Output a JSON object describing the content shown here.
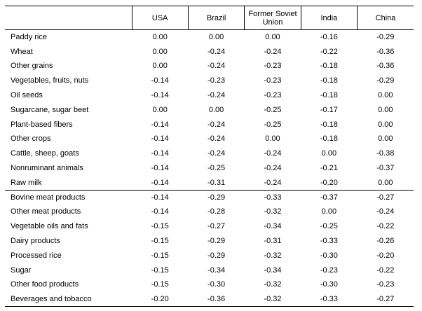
{
  "columns": [
    "USA",
    "Brazil",
    "Former Soviet Union",
    "India",
    "China"
  ],
  "rows": [
    {
      "label": "Paddy rice",
      "values": [
        "0.00",
        "0.00",
        "0.00",
        "-0.16",
        "-0.29"
      ]
    },
    {
      "label": "Wheat",
      "values": [
        "0.00",
        "-0.24",
        "-0.24",
        "-0.22",
        "-0.36"
      ]
    },
    {
      "label": "Other grains",
      "values": [
        "0.00",
        "-0.24",
        "-0.23",
        "-0.18",
        "-0.36"
      ]
    },
    {
      "label": "Vegetables, fruits, nuts",
      "values": [
        "-0.14",
        "-0.23",
        "-0.23",
        "-0.18",
        "-0.29"
      ]
    },
    {
      "label": "Oil seeds",
      "values": [
        "-0.14",
        "-0.24",
        "-0.23",
        "-0.18",
        "0.00"
      ]
    },
    {
      "label": "Sugarcane, sugar beet",
      "values": [
        "0.00",
        "0.00",
        "-0.25",
        "-0.17",
        "0.00"
      ]
    },
    {
      "label": "Plant-based fibers",
      "values": [
        "-0.14",
        "-0.24",
        "-0.25",
        "-0.18",
        "0.00"
      ]
    },
    {
      "label": "Other crops",
      "values": [
        "-0.14",
        "-0.24",
        "0.00",
        "-0.18",
        "0.00"
      ]
    },
    {
      "label": "Cattle, sheep, goats",
      "values": [
        "-0.14",
        "-0.24",
        "-0.24",
        "0.00",
        "-0.38"
      ]
    },
    {
      "label": "Nonruminant animals",
      "values": [
        "-0.14",
        "-0.25",
        "-0.24",
        "-0.21",
        "-0.37"
      ]
    },
    {
      "label": "Raw milk",
      "values": [
        "-0.14",
        "-0.31",
        "-0.24",
        "-0.20",
        "0.00"
      ]
    },
    {
      "label": "Bovine meat products",
      "values": [
        "-0.14",
        "-0.29",
        "-0.33",
        "-0.37",
        "-0.27"
      ]
    },
    {
      "label": "Other meat products",
      "values": [
        "-0.14",
        "-0.28",
        "-0.32",
        "0.00",
        "-0.24"
      ]
    },
    {
      "label": "Vegetable oils and fats",
      "values": [
        "-0.15",
        "-0.27",
        "-0.34",
        "-0.25",
        "-0.22"
      ]
    },
    {
      "label": "Dairy products",
      "values": [
        "-0.15",
        "-0.29",
        "-0.31",
        "-0.33",
        "-0.26"
      ]
    },
    {
      "label": "Processed rice",
      "values": [
        "-0.15",
        "-0.29",
        "-0.32",
        "-0.30",
        "-0.20"
      ]
    },
    {
      "label": "Sugar",
      "values": [
        "-0.15",
        "-0.34",
        "-0.34",
        "-0.23",
        "-0.22"
      ]
    },
    {
      "label": "Other food products",
      "values": [
        "-0.15",
        "-0.30",
        "-0.32",
        "-0.30",
        "-0.23"
      ]
    },
    {
      "label": "Beverages and tobacco",
      "values": [
        "-0.20",
        "-0.36",
        "-0.32",
        "-0.33",
        "-0.27"
      ]
    }
  ]
}
